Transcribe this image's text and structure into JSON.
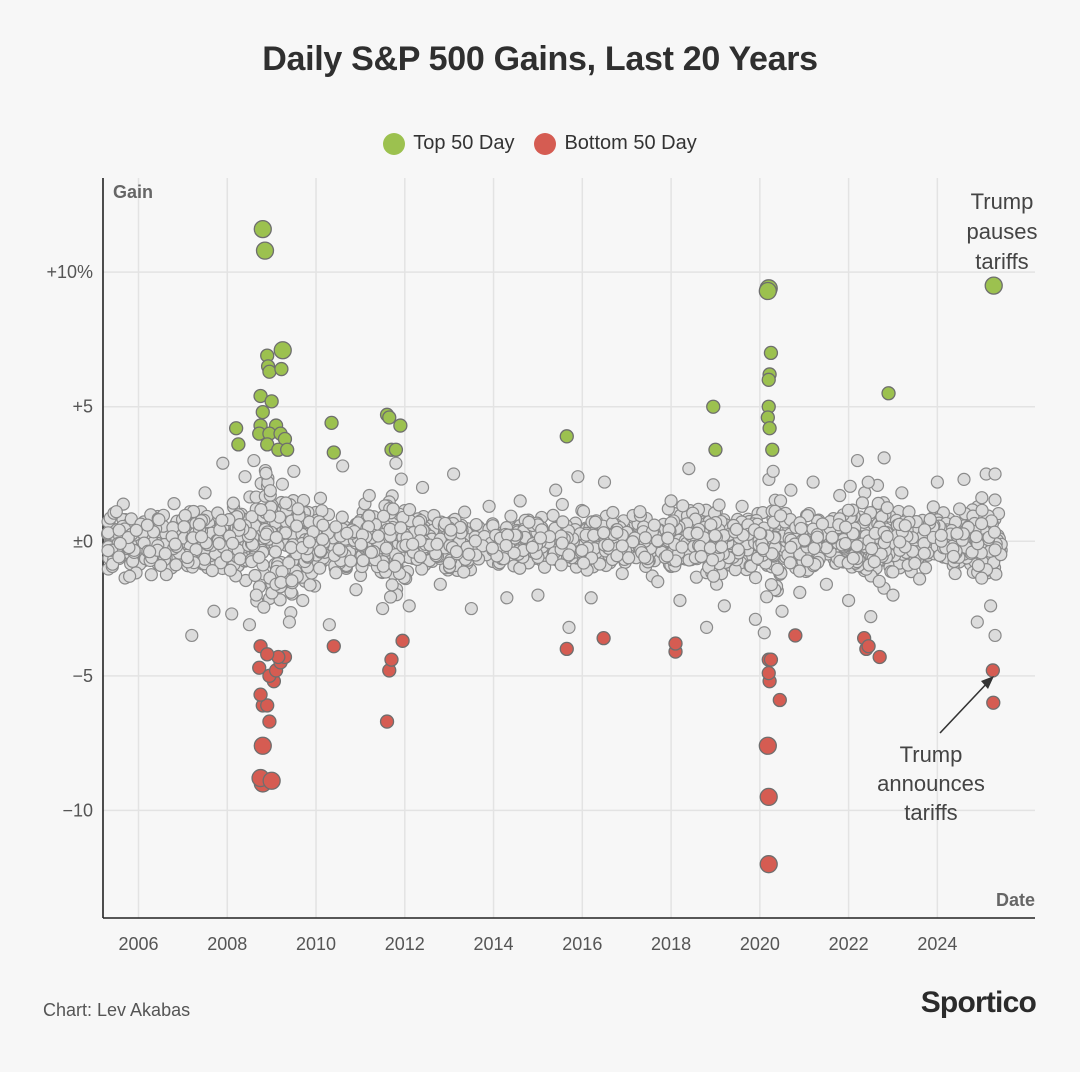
{
  "chart_data": {
    "type": "scatter",
    "title": "Daily S&P 500 Gains, Last 20 Years",
    "xlabel": "Date",
    "ylabel": "Gain",
    "xlim": [
      2005.2,
      2026.2
    ],
    "ylim": [
      -14,
      13.5
    ],
    "x_ticks": [
      "2006",
      "2008",
      "2010",
      "2012",
      "2014",
      "2016",
      "2018",
      "2020",
      "2022",
      "2024"
    ],
    "y_ticks": [
      {
        "value": 10,
        "label": "+10%"
      },
      {
        "value": 5,
        "label": "+5"
      },
      {
        "value": 0,
        "label": "±0"
      },
      {
        "value": -5,
        "label": "−5"
      },
      {
        "value": -10,
        "label": "−10"
      }
    ],
    "grid": true,
    "legend_position": "top-center",
    "series": [
      {
        "name": "Top 50 Day",
        "color": "#9cc14f",
        "points": [
          [
            2008.8,
            11.6
          ],
          [
            2008.85,
            10.8
          ],
          [
            2008.9,
            6.9
          ],
          [
            2008.92,
            6.5
          ],
          [
            2008.95,
            6.3
          ],
          [
            2009.25,
            7.1
          ],
          [
            2009.22,
            6.4
          ],
          [
            2008.75,
            5.4
          ],
          [
            2009.0,
            5.2
          ],
          [
            2008.8,
            4.8
          ],
          [
            2008.75,
            4.3
          ],
          [
            2009.1,
            4.3
          ],
          [
            2008.72,
            4.0
          ],
          [
            2008.95,
            4.0
          ],
          [
            2009.2,
            4.0
          ],
          [
            2009.3,
            3.8
          ],
          [
            2008.9,
            3.6
          ],
          [
            2009.15,
            3.4
          ],
          [
            2009.35,
            3.4
          ],
          [
            2008.2,
            4.2
          ],
          [
            2008.25,
            3.6
          ],
          [
            2010.35,
            4.4
          ],
          [
            2010.4,
            3.3
          ],
          [
            2011.6,
            4.7
          ],
          [
            2011.65,
            4.6
          ],
          [
            2011.9,
            4.3
          ],
          [
            2011.7,
            3.4
          ],
          [
            2011.8,
            3.4
          ],
          [
            2015.65,
            3.9
          ],
          [
            2018.95,
            5.0
          ],
          [
            2019.0,
            3.4
          ],
          [
            2020.2,
            9.4
          ],
          [
            2020.18,
            9.3
          ],
          [
            2020.25,
            7.0
          ],
          [
            2020.22,
            6.2
          ],
          [
            2020.2,
            6.0
          ],
          [
            2020.2,
            5.0
          ],
          [
            2020.18,
            4.6
          ],
          [
            2020.22,
            4.2
          ],
          [
            2020.28,
            3.4
          ],
          [
            2022.9,
            5.5
          ],
          [
            2025.27,
            9.5
          ]
        ]
      },
      {
        "name": "Bottom 50 Day",
        "color": "#d55c52",
        "points": [
          [
            2008.8,
            -9.0
          ],
          [
            2008.75,
            -8.8
          ],
          [
            2009.0,
            -8.9
          ],
          [
            2008.8,
            -7.6
          ],
          [
            2008.95,
            -6.7
          ],
          [
            2008.8,
            -6.1
          ],
          [
            2008.9,
            -6.1
          ],
          [
            2008.75,
            -5.7
          ],
          [
            2009.05,
            -5.2
          ],
          [
            2008.95,
            -5.0
          ],
          [
            2008.72,
            -4.7
          ],
          [
            2009.1,
            -4.8
          ],
          [
            2009.2,
            -4.5
          ],
          [
            2009.3,
            -4.3
          ],
          [
            2009.15,
            -4.3
          ],
          [
            2008.75,
            -3.9
          ],
          [
            2008.9,
            -4.2
          ],
          [
            2011.6,
            -6.7
          ],
          [
            2011.65,
            -4.8
          ],
          [
            2011.7,
            -4.4
          ],
          [
            2010.4,
            -3.9
          ],
          [
            2011.95,
            -3.7
          ],
          [
            2015.65,
            -4.0
          ],
          [
            2016.48,
            -3.6
          ],
          [
            2018.1,
            -4.1
          ],
          [
            2018.1,
            -3.8
          ],
          [
            2020.2,
            -12.0
          ],
          [
            2020.2,
            -9.5
          ],
          [
            2020.18,
            -7.6
          ],
          [
            2020.22,
            -5.2
          ],
          [
            2020.2,
            -4.9
          ],
          [
            2020.2,
            -4.4
          ],
          [
            2020.25,
            -4.4
          ],
          [
            2020.45,
            -5.9
          ],
          [
            2020.8,
            -3.5
          ],
          [
            2022.35,
            -3.6
          ],
          [
            2022.4,
            -4.0
          ],
          [
            2022.45,
            -3.9
          ],
          [
            2022.7,
            -4.3
          ],
          [
            2025.25,
            -4.8
          ],
          [
            2025.26,
            -6.0
          ]
        ]
      },
      {
        "name": "",
        "color": "#dcdcdc",
        "points": [
          [
            2005.5,
            1.1
          ],
          [
            2005.8,
            -1.3
          ],
          [
            2006.2,
            0.6
          ],
          [
            2006.5,
            -0.9
          ],
          [
            2006.8,
            1.4
          ],
          [
            2007.1,
            -0.6
          ],
          [
            2007.2,
            -3.5
          ],
          [
            2007.5,
            1.8
          ],
          [
            2007.7,
            -2.6
          ],
          [
            2007.9,
            2.9
          ],
          [
            2008.1,
            -2.7
          ],
          [
            2008.4,
            2.4
          ],
          [
            2008.5,
            -3.1
          ],
          [
            2008.6,
            3.0
          ],
          [
            2009.4,
            -3.0
          ],
          [
            2009.5,
            2.6
          ],
          [
            2009.7,
            -2.2
          ],
          [
            2010.1,
            1.6
          ],
          [
            2010.3,
            -3.1
          ],
          [
            2010.6,
            2.8
          ],
          [
            2010.9,
            -1.8
          ],
          [
            2011.2,
            1.7
          ],
          [
            2011.5,
            -2.5
          ],
          [
            2011.8,
            2.9
          ],
          [
            2012.1,
            -2.4
          ],
          [
            2012.4,
            2.0
          ],
          [
            2012.8,
            -1.6
          ],
          [
            2013.1,
            2.5
          ],
          [
            2013.5,
            -2.5
          ],
          [
            2013.9,
            1.3
          ],
          [
            2014.3,
            -2.1
          ],
          [
            2014.6,
            1.5
          ],
          [
            2015.0,
            -2.0
          ],
          [
            2015.4,
            1.9
          ],
          [
            2015.7,
            -3.2
          ],
          [
            2015.9,
            2.4
          ],
          [
            2016.2,
            -2.1
          ],
          [
            2016.5,
            2.2
          ],
          [
            2016.9,
            -1.2
          ],
          [
            2017.3,
            1.1
          ],
          [
            2017.7,
            -1.5
          ],
          [
            2018.0,
            1.5
          ],
          [
            2018.2,
            -2.2
          ],
          [
            2018.4,
            2.7
          ],
          [
            2018.8,
            -3.2
          ],
          [
            2018.95,
            2.1
          ],
          [
            2019.2,
            -2.4
          ],
          [
            2019.6,
            1.3
          ],
          [
            2019.9,
            -2.9
          ],
          [
            2020.1,
            -3.4
          ],
          [
            2020.3,
            2.6
          ],
          [
            2020.5,
            -2.6
          ],
          [
            2020.7,
            1.9
          ],
          [
            2020.9,
            -1.9
          ],
          [
            2021.2,
            2.2
          ],
          [
            2021.5,
            -1.6
          ],
          [
            2021.8,
            1.7
          ],
          [
            2022.0,
            -2.2
          ],
          [
            2022.2,
            3.0
          ],
          [
            2022.5,
            -2.8
          ],
          [
            2022.8,
            3.1
          ],
          [
            2023.0,
            -2.0
          ],
          [
            2023.2,
            1.8
          ],
          [
            2023.6,
            -1.4
          ],
          [
            2024.0,
            2.2
          ],
          [
            2024.4,
            -1.2
          ],
          [
            2024.6,
            2.3
          ],
          [
            2024.9,
            -3.0
          ],
          [
            2025.1,
            2.5
          ],
          [
            2025.3,
            -3.5
          ],
          [
            2025.3,
            2.5
          ],
          [
            2025.2,
            -2.4
          ]
        ]
      }
    ]
  },
  "annotations": {
    "tariff_pause": [
      "Trump",
      "pauses",
      "tariffs"
    ],
    "tariff_announce": [
      "Trump",
      "announces",
      "tariffs"
    ]
  },
  "footer": {
    "credit": "Chart: Lev Akabas",
    "brand": "Sportico"
  }
}
